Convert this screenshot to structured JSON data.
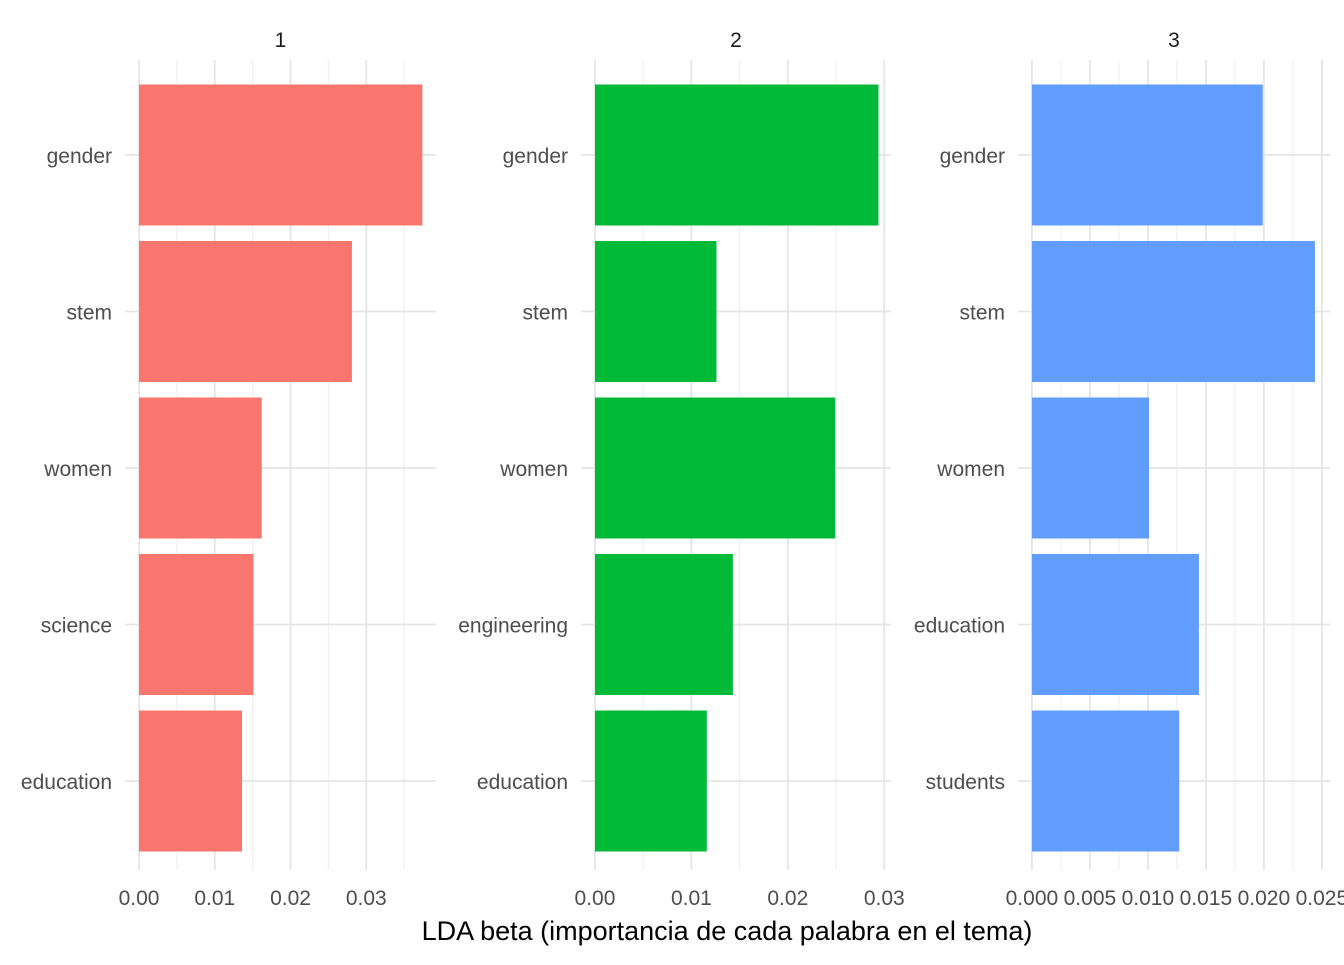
{
  "chart_data": {
    "type": "bar",
    "orientation": "horizontal",
    "facets": "free scales",
    "xlabel": "LDA beta (importancia de cada palabra en el tema)",
    "ylabel": "",
    "grid": true,
    "panels": [
      {
        "title": "1",
        "color": "#F8766D",
        "categories": [
          "gender",
          "stem",
          "women",
          "science",
          "education"
        ],
        "values": [
          0.0374,
          0.0281,
          0.0162,
          0.0151,
          0.0136
        ],
        "xlim": [
          -0.00185,
          0.0392
        ],
        "ticks": [
          0,
          0.01,
          0.02,
          0.03
        ],
        "tick_labels": [
          "0.00",
          "0.01",
          "0.02",
          "0.03"
        ]
      },
      {
        "title": "2",
        "color": "#00BA38",
        "categories": [
          "gender",
          "stem",
          "women",
          "engineering",
          "education"
        ],
        "values": [
          0.0294,
          0.0126,
          0.0249,
          0.0143,
          0.0116
        ],
        "xlim": [
          -0.00145,
          0.0307
        ],
        "ticks": [
          0,
          0.01,
          0.02,
          0.03
        ],
        "tick_labels": [
          "0.00",
          "0.01",
          "0.02",
          "0.03"
        ]
      },
      {
        "title": "3",
        "color": "#619CFF",
        "categories": [
          "gender",
          "stem",
          "women",
          "education",
          "students"
        ],
        "values": [
          0.0199,
          0.0244,
          0.0101,
          0.0144,
          0.0127
        ],
        "xlim": [
          -0.0012,
          0.0257
        ],
        "ticks": [
          0,
          0.005,
          0.01,
          0.015,
          0.02,
          0.025
        ],
        "tick_labels": [
          "0.000",
          "0.005",
          "0.010",
          "0.015",
          "0.020",
          "0.025"
        ]
      }
    ]
  }
}
